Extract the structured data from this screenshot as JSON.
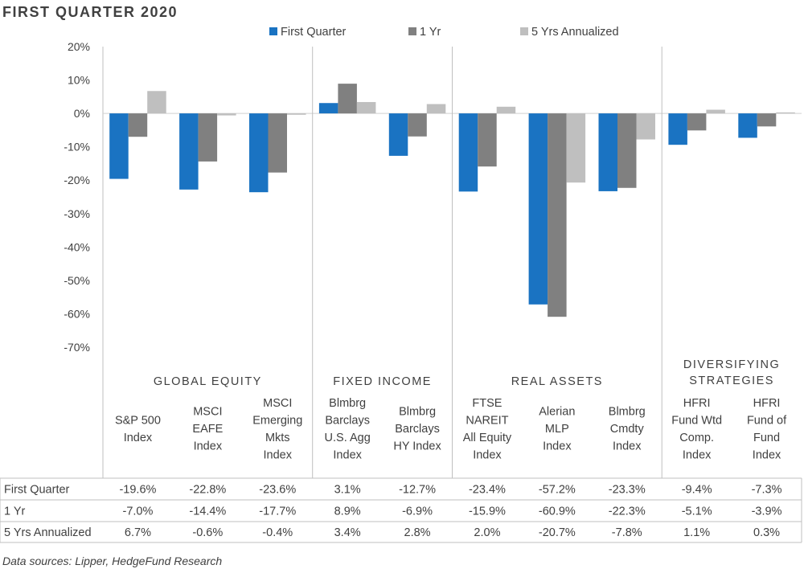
{
  "title": "FIRST QUARTER 2020",
  "source": "Data sources: Lipper, HedgeFund Research",
  "colors": {
    "series": [
      "#1a73c2",
      "#808080",
      "#bfbfbf"
    ],
    "axis": "#bfbfbf",
    "text": "#404040"
  },
  "chart_data": {
    "type": "bar",
    "ylim": [
      -70,
      20
    ],
    "yticks": [
      20,
      10,
      0,
      -10,
      -20,
      -30,
      -40,
      -50,
      -60,
      -70
    ],
    "ytick_labels": [
      "20%",
      "10%",
      "0%",
      "-10%",
      "-20%",
      "-30%",
      "-40%",
      "-50%",
      "-60%",
      "-70%"
    ],
    "legend_position": "top",
    "groups": [
      {
        "label": [
          "GLOBAL EQUITY"
        ],
        "count": 3
      },
      {
        "label": [
          "FIXED INCOME"
        ],
        "count": 2
      },
      {
        "label": [
          "REAL ASSETS"
        ],
        "count": 3
      },
      {
        "label": [
          "DIVERSIFYING",
          "STRATEGIES"
        ],
        "count": 2
      }
    ],
    "categories": [
      [
        "S&P 500",
        "Index"
      ],
      [
        "MSCI",
        "EAFE",
        "Index"
      ],
      [
        "MSCI",
        "Emerging",
        "Mkts",
        "Index"
      ],
      [
        "Blmbrg",
        "Barclays",
        "U.S. Agg",
        "Index"
      ],
      [
        "Blmbrg",
        "Barclays",
        "HY Index"
      ],
      [
        "FTSE",
        "NAREIT",
        "All Equity",
        "Index"
      ],
      [
        "Alerian",
        "MLP",
        "Index"
      ],
      [
        "Blmbrg",
        "Cmdty",
        "Index"
      ],
      [
        "HFRI",
        "Fund Wtd",
        "Comp.",
        "Index"
      ],
      [
        "HFRI",
        "Fund of",
        "Fund",
        "Index"
      ]
    ],
    "series": [
      {
        "name": "First Quarter",
        "values": [
          -19.6,
          -22.8,
          -23.6,
          3.1,
          -12.7,
          -23.4,
          -57.2,
          -23.3,
          -9.4,
          -7.3
        ],
        "labels": [
          "-19.6%",
          "-22.8%",
          "-23.6%",
          "3.1%",
          "-12.7%",
          "-23.4%",
          "-57.2%",
          "-23.3%",
          "-9.4%",
          "-7.3%"
        ]
      },
      {
        "name": "1 Yr",
        "values": [
          -7.0,
          -14.4,
          -17.7,
          8.9,
          -6.9,
          -15.9,
          -60.9,
          -22.3,
          -5.1,
          -3.9
        ],
        "labels": [
          "-7.0%",
          "-14.4%",
          "-17.7%",
          "8.9%",
          "-6.9%",
          "-15.9%",
          "-60.9%",
          "-22.3%",
          "-5.1%",
          "-3.9%"
        ]
      },
      {
        "name": "5 Yrs Annualized",
        "values": [
          6.7,
          -0.6,
          -0.4,
          3.4,
          2.8,
          2.0,
          -20.7,
          -7.8,
          1.1,
          0.3
        ],
        "labels": [
          "6.7%",
          "-0.6%",
          "-0.4%",
          "3.4%",
          "2.8%",
          "2.0%",
          "-20.7%",
          "-7.8%",
          "1.1%",
          "0.3%"
        ]
      }
    ]
  }
}
